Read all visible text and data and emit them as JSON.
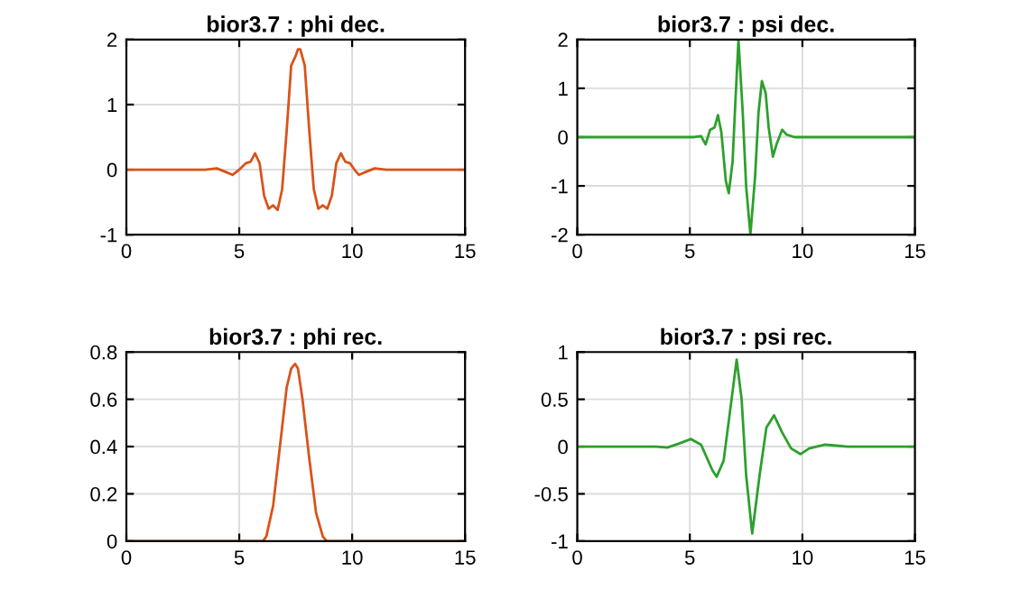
{
  "chart_data": [
    {
      "type": "line",
      "title": "bior3.7 : phi dec.",
      "xlim": [
        0,
        15
      ],
      "xticks": [
        0,
        5,
        10,
        15
      ],
      "ylim": [
        -1,
        2
      ],
      "yticks": [
        -1,
        0,
        1,
        2
      ],
      "grid": true,
      "series": [
        {
          "color": "#d95319",
          "x": [
            0,
            3.5,
            4,
            4.5,
            4.7,
            5,
            5.3,
            5.5,
            5.7,
            5.9,
            6.1,
            6.3,
            6.5,
            6.7,
            6.9,
            7.1,
            7.3,
            7.5,
            7.6,
            7.7,
            7.9,
            8.1,
            8.3,
            8.5,
            8.7,
            8.9,
            9.1,
            9.3,
            9.5,
            9.7,
            9.9,
            10.1,
            10.3,
            10.5,
            11,
            11.5,
            15
          ],
          "values": [
            0,
            0,
            0.02,
            -0.05,
            -0.08,
            0,
            0.1,
            0.12,
            0.25,
            0.1,
            -0.4,
            -0.6,
            -0.55,
            -0.62,
            -0.3,
            0.6,
            1.6,
            1.75,
            1.85,
            1.85,
            1.6,
            0.6,
            -0.3,
            -0.6,
            -0.55,
            -0.6,
            -0.4,
            0.1,
            0.25,
            0.12,
            0.1,
            0,
            -0.08,
            -0.05,
            0.02,
            0,
            0
          ]
        }
      ]
    },
    {
      "type": "line",
      "title": "bior3.7 : psi dec.",
      "xlim": [
        0,
        15
      ],
      "xticks": [
        0,
        5,
        10,
        15
      ],
      "ylim": [
        -2,
        2
      ],
      "yticks": [
        -2,
        -1,
        0,
        1,
        2
      ],
      "grid": true,
      "series": [
        {
          "color": "#2ca02c",
          "x": [
            0,
            5.2,
            5.5,
            5.7,
            5.9,
            6.1,
            6.25,
            6.4,
            6.6,
            6.73,
            6.9,
            7.0,
            7.16,
            7.35,
            7.5,
            7.69,
            7.9,
            8.05,
            8.2,
            8.37,
            8.5,
            8.69,
            8.85,
            9.1,
            9.3,
            9.65,
            15
          ],
          "values": [
            0,
            0,
            0.02,
            -0.15,
            0.15,
            0.2,
            0.45,
            0.1,
            -0.9,
            -1.15,
            -0.5,
            0.5,
            2,
            0.5,
            -1.0,
            -2,
            -0.8,
            0.5,
            1.15,
            0.9,
            0.2,
            -0.4,
            -0.15,
            0.15,
            0.05,
            0,
            0
          ]
        }
      ]
    },
    {
      "type": "line",
      "title": "bior3.7 : phi rec.",
      "xlim": [
        0,
        15
      ],
      "xticks": [
        0,
        5,
        10,
        15
      ],
      "ylim": [
        0,
        0.8
      ],
      "yticks": [
        0,
        0.2,
        0.4,
        0.6,
        0.8
      ],
      "grid": true,
      "series": [
        {
          "color": "#d95319",
          "x": [
            0,
            6.05,
            6.2,
            6.5,
            6.8,
            7.1,
            7.3,
            7.47,
            7.6,
            7.8,
            8.1,
            8.4,
            8.7,
            8.87,
            15
          ],
          "values": [
            0,
            0,
            0.02,
            0.15,
            0.4,
            0.65,
            0.73,
            0.75,
            0.73,
            0.6,
            0.35,
            0.12,
            0.02,
            0,
            0
          ]
        }
      ]
    },
    {
      "type": "line",
      "title": "bior3.7 : psi rec.",
      "xlim": [
        0,
        15
      ],
      "xticks": [
        0,
        5,
        10,
        15
      ],
      "ylim": [
        -1,
        1
      ],
      "yticks": [
        -1,
        -0.5,
        0,
        0.5,
        1
      ],
      "grid": true,
      "series": [
        {
          "color": "#2ca02c",
          "x": [
            0,
            3.5,
            4,
            4.5,
            5.05,
            5.5,
            6,
            6.19,
            6.5,
            6.8,
            7.08,
            7.3,
            7.5,
            7.77,
            8.1,
            8.4,
            8.74,
            9.1,
            9.5,
            9.92,
            10.3,
            11,
            11.5,
            12,
            15
          ],
          "values": [
            0,
            0,
            -0.01,
            0.03,
            0.08,
            0.02,
            -0.25,
            -0.32,
            -0.15,
            0.4,
            0.92,
            0.5,
            -0.3,
            -0.92,
            -0.3,
            0.2,
            0.33,
            0.15,
            -0.02,
            -0.08,
            -0.02,
            0.02,
            0.01,
            0,
            0
          ]
        }
      ]
    }
  ]
}
